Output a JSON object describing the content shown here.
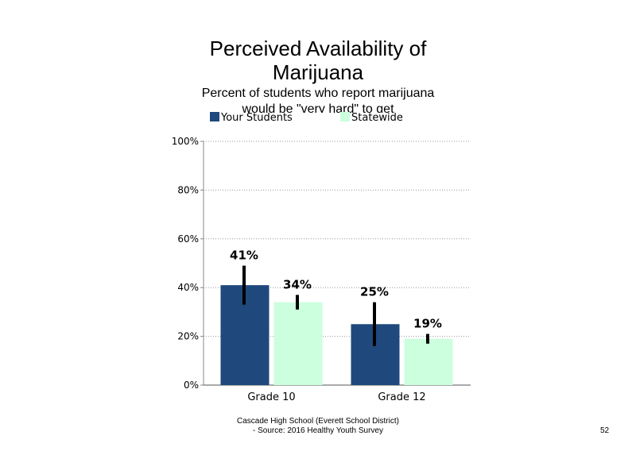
{
  "chart_data": {
    "type": "bar",
    "title": "Perceived Availability of Marijuana",
    "title_lines": [
      "Perceived Availability of",
      "Marijuana"
    ],
    "subtitle_lines": [
      "Percent of students  who report marijuana",
      "would  be \"very hard\" to get"
    ],
    "categories": [
      "Grade 10",
      "Grade 12"
    ],
    "series": [
      {
        "name": "Your Students",
        "color": "#1f497d",
        "values": [
          41,
          25
        ],
        "labels": [
          "41%",
          "25%"
        ],
        "error_low": [
          33,
          16
        ],
        "error_high": [
          49,
          34
        ]
      },
      {
        "name": "Statewide",
        "color": "#ccffdd",
        "values": [
          34,
          19
        ],
        "labels": [
          "34%",
          "19%"
        ],
        "error_low": [
          31,
          17
        ],
        "error_high": [
          37,
          21
        ]
      }
    ],
    "ylim": [
      0,
      100
    ],
    "yticks": [
      0,
      20,
      40,
      60,
      80,
      100
    ],
    "ytick_labels": [
      "0%",
      "20%",
      "40%",
      "60%",
      "80%",
      "100%"
    ],
    "grid": true,
    "legend_position": "top"
  },
  "footer": {
    "line1": "Cascade High  School (Everett School District)",
    "line2": "- Source: 2016 Healthy  Youth Survey"
  },
  "page_number": "52"
}
